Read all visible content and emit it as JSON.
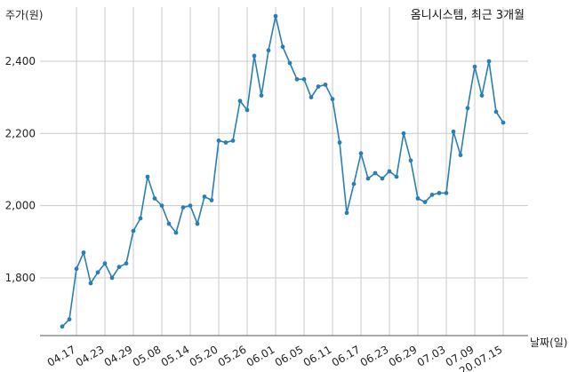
{
  "chart_data": {
    "type": "line",
    "title": "옴니시스템, 최근 3개월",
    "ylabel": "주가(원)",
    "xlabel": "날짜(일)",
    "ylim": [
      1640,
      2550
    ],
    "y_ticks": [
      1800,
      2000,
      2200,
      2400
    ],
    "y_tick_labels": [
      "1,800",
      "2,000",
      "2,200",
      "2,400"
    ],
    "x_tick_labels": [
      "04.17",
      "04.23",
      "04.29",
      "05.08",
      "05.14",
      "05.20",
      "05.26",
      "06.01",
      "06.05",
      "06.11",
      "06.17",
      "06.23",
      "06.29",
      "07.03",
      "07.09",
      "20.07.15"
    ],
    "x_tick_index": [
      2,
      6,
      10,
      14,
      18,
      22,
      26,
      30,
      34,
      38,
      42,
      46,
      50,
      54,
      58,
      62
    ],
    "grid": true,
    "line_color": "#2a7fb0",
    "series": [
      {
        "values": [
          1665,
          1685,
          1825,
          1870,
          1785,
          1815,
          1840,
          1800,
          1830,
          1840,
          1930,
          1965,
          2080,
          2020,
          2000,
          1950,
          1925,
          1995,
          2000,
          1950,
          2025,
          2015,
          2180,
          2175,
          2180,
          2290,
          2265,
          2415,
          2305,
          2430,
          2525,
          2440,
          2395,
          2350,
          2350,
          2300,
          2330,
          2335,
          2295,
          2175,
          1980,
          2060,
          2145,
          2075,
          2090,
          2075,
          2095,
          2080,
          2200,
          2125,
          2020,
          2010,
          2030,
          2035,
          2035,
          2205,
          2140,
          2270,
          2385,
          2305,
          2400,
          2260,
          2230
        ]
      }
    ]
  }
}
